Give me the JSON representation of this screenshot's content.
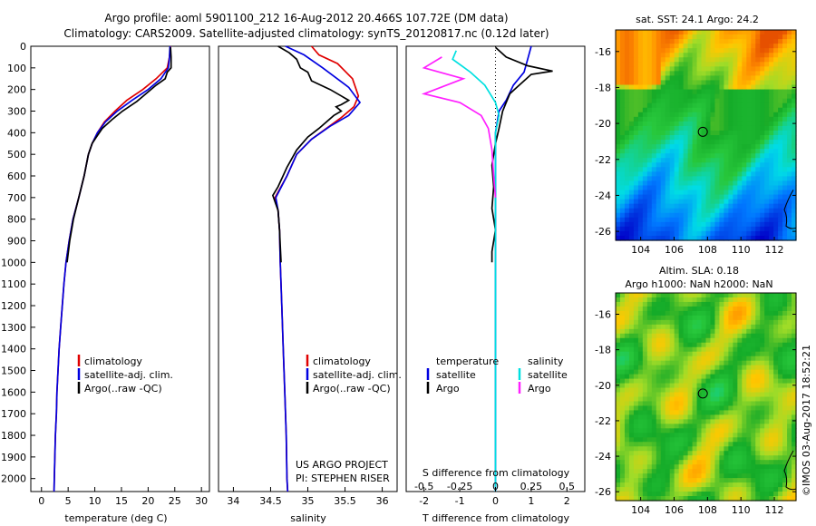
{
  "header": {
    "title1": "Argo profile: aoml 5901100_212 16-Aug-2012 20.466S 107.72E (DM data)",
    "title2": "Climatology: CARS2009. Satellite-adjusted climatology: synTS_20120817.nc (0.12d later)"
  },
  "map1": {
    "title": "sat. SST: 24.1  Argo: 24.2"
  },
  "map2": {
    "title1": "Altim. SLA: 0.18",
    "title2": "Argo h1000: NaN h2000: NaN"
  },
  "credit": {
    "text": "US ARGO PROJECT",
    "pi": "PI: STEPHEN RISER"
  },
  "stamp": "©IMOS 03-Aug-2017 18:52:21",
  "legend_profile": {
    "clim": "climatology",
    "sat": "satellite-adj. clim.",
    "argo": "Argo(..raw -QC)"
  },
  "legend_diff": {
    "temp_title": "temperature",
    "sal_title": "salinity",
    "sat": "satellite",
    "argo": "Argo",
    "s_axis_title": "S difference from climatology",
    "t_axis_title": "T difference from climatology"
  },
  "colors": {
    "clim": "#e00000",
    "sat": "#0000e0",
    "argo": "#000000",
    "sat_s": "#00e0e0",
    "argo_s": "#ff20ff",
    "marker": "#000000"
  },
  "chart_data": [
    {
      "type": "line",
      "xlabel": "temperature (deg C)",
      "ylabel": "",
      "xlim": [
        -2,
        31.5
      ],
      "ylim": [
        2060,
        0
      ],
      "xticks": [
        0,
        5,
        10,
        15,
        20,
        25,
        30
      ],
      "yticks": [
        0,
        100,
        200,
        300,
        400,
        500,
        600,
        700,
        800,
        900,
        1000,
        1100,
        1200,
        1300,
        1400,
        1500,
        1600,
        1700,
        1800,
        1900,
        2000
      ],
      "series": [
        {
          "name": "climatology",
          "points": [
            [
              24.2,
              0
            ],
            [
              24.0,
              50
            ],
            [
              23.6,
              100
            ],
            [
              21.5,
              150
            ],
            [
              19.0,
              200
            ],
            [
              16.0,
              250
            ],
            [
              13.8,
              300
            ],
            [
              11.8,
              350
            ],
            [
              10.5,
              400
            ],
            [
              9.5,
              450
            ],
            [
              8.8,
              500
            ],
            [
              8.0,
              600
            ],
            [
              7.0,
              700
            ],
            [
              5.9,
              800
            ],
            [
              5.2,
              900
            ],
            [
              4.6,
              1000
            ],
            [
              4.2,
              1100
            ],
            [
              3.9,
              1200
            ],
            [
              3.6,
              1300
            ],
            [
              3.3,
              1400
            ],
            [
              3.1,
              1500
            ],
            [
              2.9,
              1600
            ],
            [
              2.8,
              1700
            ],
            [
              2.6,
              1800
            ],
            [
              2.5,
              1900
            ],
            [
              2.4,
              2000
            ],
            [
              2.35,
              2060
            ]
          ]
        },
        {
          "name": "satellite-adj. clim.",
          "points": [
            [
              24.1,
              0
            ],
            [
              24.0,
              50
            ],
            [
              23.8,
              100
            ],
            [
              22.4,
              150
            ],
            [
              20.0,
              200
            ],
            [
              17.0,
              250
            ],
            [
              14.2,
              300
            ],
            [
              12.0,
              350
            ],
            [
              10.5,
              400
            ],
            [
              9.5,
              450
            ],
            [
              8.8,
              500
            ],
            [
              8.0,
              600
            ],
            [
              7.0,
              700
            ],
            [
              5.9,
              800
            ],
            [
              5.2,
              900
            ],
            [
              4.6,
              1000
            ],
            [
              4.2,
              1100
            ],
            [
              3.9,
              1200
            ],
            [
              3.6,
              1300
            ],
            [
              3.3,
              1400
            ],
            [
              3.1,
              1500
            ],
            [
              2.9,
              1600
            ],
            [
              2.8,
              1700
            ],
            [
              2.6,
              1800
            ],
            [
              2.5,
              1900
            ],
            [
              2.4,
              2000
            ],
            [
              2.35,
              2060
            ]
          ]
        },
        {
          "name": "Argo(..raw -QC)",
          "points": [
            [
              24.2,
              5
            ],
            [
              24.3,
              50
            ],
            [
              24.3,
              100
            ],
            [
              23.6,
              120
            ],
            [
              23.2,
              150
            ],
            [
              21.5,
              180
            ],
            [
              19.6,
              220
            ],
            [
              17.9,
              255
            ],
            [
              15.2,
              300
            ],
            [
              13.2,
              340
            ],
            [
              11.4,
              380
            ],
            [
              10.3,
              420
            ],
            [
              9.5,
              450
            ],
            [
              8.8,
              500
            ],
            [
              8.0,
              600
            ],
            [
              7.0,
              700
            ],
            [
              6.0,
              800
            ],
            [
              5.3,
              900
            ],
            [
              4.8,
              1000
            ]
          ]
        }
      ]
    },
    {
      "type": "line",
      "xlabel": "salinity",
      "ylabel": "",
      "xlim": [
        33.8,
        36.2
      ],
      "ylim": [
        2060,
        0
      ],
      "xticks": [
        34,
        34.5,
        35,
        35.5,
        36
      ],
      "series": [
        {
          "name": "climatology",
          "points": [
            [
              35.05,
              0
            ],
            [
              35.15,
              40
            ],
            [
              35.4,
              80
            ],
            [
              35.6,
              150
            ],
            [
              35.68,
              230
            ],
            [
              35.62,
              280
            ],
            [
              35.45,
              330
            ],
            [
              35.25,
              380
            ],
            [
              35.05,
              430
            ],
            [
              34.85,
              500
            ],
            [
              34.72,
              600
            ],
            [
              34.56,
              700
            ],
            [
              34.6,
              760
            ],
            [
              34.62,
              850
            ],
            [
              34.63,
              1000
            ],
            [
              34.65,
              1200
            ],
            [
              34.67,
              1400
            ],
            [
              34.69,
              1600
            ],
            [
              34.71,
              1800
            ],
            [
              34.72,
              2000
            ],
            [
              34.73,
              2060
            ]
          ]
        },
        {
          "name": "satellite-adj. clim.",
          "points": [
            [
              34.7,
              0
            ],
            [
              34.95,
              40
            ],
            [
              35.2,
              100
            ],
            [
              35.55,
              190
            ],
            [
              35.7,
              260
            ],
            [
              35.55,
              320
            ],
            [
              35.3,
              370
            ],
            [
              35.05,
              430
            ],
            [
              34.85,
              500
            ],
            [
              34.72,
              600
            ],
            [
              34.57,
              700
            ],
            [
              34.6,
              760
            ],
            [
              34.62,
              850
            ],
            [
              34.63,
              1000
            ],
            [
              34.65,
              1200
            ],
            [
              34.67,
              1400
            ],
            [
              34.69,
              1600
            ],
            [
              34.71,
              1800
            ],
            [
              34.72,
              2000
            ],
            [
              34.73,
              2060
            ]
          ]
        },
        {
          "name": "Argo(..raw -QC)",
          "points": [
            [
              34.6,
              0
            ],
            [
              34.75,
              30
            ],
            [
              34.85,
              60
            ],
            [
              34.9,
              100
            ],
            [
              35.0,
              120
            ],
            [
              35.05,
              160
            ],
            [
              35.3,
              200
            ],
            [
              35.45,
              230
            ],
            [
              35.55,
              250
            ],
            [
              35.45,
              270
            ],
            [
              35.38,
              280
            ],
            [
              35.45,
              300
            ],
            [
              35.35,
              320
            ],
            [
              35.15,
              380
            ],
            [
              35.0,
              420
            ],
            [
              34.85,
              480
            ],
            [
              34.72,
              560
            ],
            [
              34.6,
              650
            ],
            [
              34.53,
              690
            ],
            [
              34.6,
              760
            ],
            [
              34.62,
              850
            ],
            [
              34.64,
              1000
            ]
          ]
        }
      ]
    },
    {
      "type": "line",
      "xlabel": "T difference from climatology",
      "ylabel": "",
      "xlim": [
        -2.5,
        2.5
      ],
      "ylim": [
        2060,
        0
      ],
      "xticks": [
        -2,
        -1,
        0,
        1,
        2
      ],
      "top_axis": {
        "title": "S difference from climatology",
        "ticks": [
          "-0.5",
          "-0.25",
          "0",
          "0.25",
          "0.5"
        ]
      },
      "series": [
        {
          "name": "satellite",
          "group": "temperature",
          "points": [
            [
              1.0,
              0
            ],
            [
              0.9,
              60
            ],
            [
              0.8,
              120
            ],
            [
              0.5,
              180
            ],
            [
              0.3,
              250
            ],
            [
              0.1,
              300
            ],
            [
              0.0,
              400
            ],
            [
              0.0,
              600
            ],
            [
              0.0,
              800
            ],
            [
              0.0,
              1000
            ],
            [
              0.0,
              1200
            ],
            [
              0.0,
              1400
            ],
            [
              0.0,
              1600
            ],
            [
              0.0,
              1800
            ],
            [
              0.0,
              2000
            ],
            [
              0.0,
              2060
            ]
          ]
        },
        {
          "name": "Argo",
          "group": "temperature",
          "points": [
            [
              0.0,
              5
            ],
            [
              0.3,
              50
            ],
            [
              0.9,
              90
            ],
            [
              1.6,
              115
            ],
            [
              1.0,
              130
            ],
            [
              0.8,
              160
            ],
            [
              0.6,
              190
            ],
            [
              0.4,
              220
            ],
            [
              0.3,
              260
            ],
            [
              0.2,
              300
            ],
            [
              0.1,
              380
            ],
            [
              0.0,
              450
            ],
            [
              -0.1,
              550
            ],
            [
              -0.05,
              650
            ],
            [
              -0.1,
              750
            ],
            [
              0.0,
              850
            ],
            [
              -0.1,
              950
            ],
            [
              -0.1,
              1000
            ]
          ]
        },
        {
          "name": "satellite",
          "group": "salinity",
          "points": [
            [
              -1.1,
              20
            ],
            [
              -1.2,
              60
            ],
            [
              -0.7,
              120
            ],
            [
              -0.3,
              180
            ],
            [
              0.0,
              260
            ],
            [
              0.1,
              320
            ],
            [
              0.0,
              400
            ],
            [
              0.0,
              600
            ],
            [
              0.0,
              1000
            ],
            [
              0.0,
              1500
            ],
            [
              0.0,
              2060
            ]
          ]
        },
        {
          "name": "Argo",
          "group": "salinity",
          "points": [
            [
              -1.5,
              50
            ],
            [
              -2.0,
              100
            ],
            [
              -0.9,
              150
            ],
            [
              -2.0,
              220
            ],
            [
              -1.0,
              260
            ],
            [
              -0.4,
              320
            ],
            [
              -0.2,
              380
            ],
            [
              -0.1,
              480
            ],
            [
              -0.05,
              600
            ],
            [
              0.0,
              700
            ]
          ]
        }
      ]
    }
  ],
  "maps": {
    "xlabel_ticks": [
      "104",
      "106",
      "108",
      "110",
      "112"
    ],
    "ylabel_ticks": [
      "-16",
      "-18",
      "-20",
      "-22",
      "-24",
      "-26"
    ],
    "float_position": {
      "lon": 107.72,
      "lat": -20.466
    },
    "lon_range": [
      102.5,
      113.3
    ],
    "lat_range": [
      -26.5,
      -14.8
    ]
  }
}
